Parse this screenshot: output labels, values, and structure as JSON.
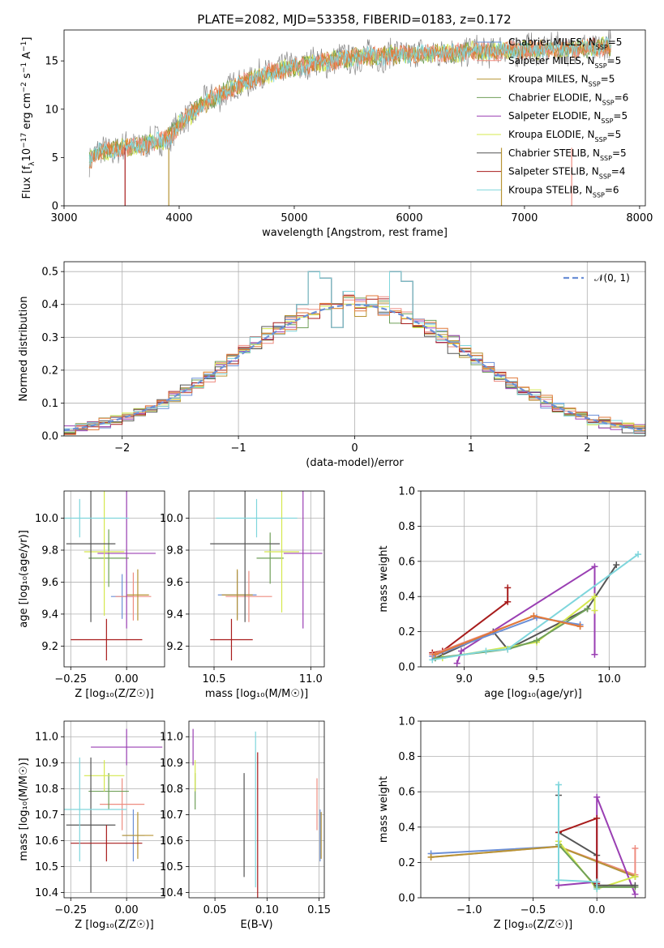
{
  "figure_title": "PLATE=2082, MJD=53358, FIBERID=0183, z=0.172",
  "colors": {
    "Chabrier MILES": "#6b8fd6",
    "Salpeter MILES": "#ee8c80",
    "Kroupa MILES": "#b79434",
    "Chabrier ELODIE": "#6f9f58",
    "Salpeter ELODIE": "#9a3fb3",
    "Kroupa ELODIE": "#d5e84e",
    "Chabrier STELIB": "#555555",
    "Salpeter STELIB": "#a81c1c",
    "Kroupa STELIB": "#7fd6dc",
    "data": "#888888",
    "extra_orange": "#e07a3a"
  },
  "chart_data": [
    {
      "id": "spectrum",
      "type": "line",
      "title": "PLATE=2082, MJD=53358, FIBERID=0183, z=0.172",
      "xlabel": "wavelength [Angstrom, rest frame]",
      "ylabel_parts": [
        "Flux [f",
        "λ",
        "10",
        "−17",
        " erg cm",
        "−2",
        " s",
        "−1",
        " A",
        "−1",
        "]"
      ],
      "xlim": [
        3000,
        8050
      ],
      "ylim": [
        0,
        18.2
      ],
      "xticks": [
        3000,
        4000,
        5000,
        6000,
        7000,
        8000
      ],
      "yticks": [
        0,
        5,
        10,
        15
      ],
      "grid": false,
      "legend_position": "top-right",
      "legend": [
        {
          "name": "Chabrier MILES",
          "nssp": "5"
        },
        {
          "name": "Salpeter MILES",
          "nssp": "5"
        },
        {
          "name": "Kroupa MILES",
          "nssp": "5"
        },
        {
          "name": "Chabrier ELODIE",
          "nssp": "6"
        },
        {
          "name": "Salpeter ELODIE",
          "nssp": "5"
        },
        {
          "name": "Kroupa ELODIE",
          "nssp": "5"
        },
        {
          "name": "Chabrier STELIB",
          "nssp": "5"
        },
        {
          "name": "Salpeter STELIB",
          "nssp": "4"
        },
        {
          "name": "Kroupa STELIB",
          "nssp": "6"
        }
      ],
      "continuum": {
        "x": [
          3220,
          3300,
          3500,
          3700,
          3900,
          4000,
          4200,
          4400,
          4600,
          4800,
          5000,
          5200,
          5500,
          5800,
          6000,
          6300,
          6600,
          6900,
          7200,
          7500,
          7750
        ],
        "y": [
          4.8,
          5.5,
          6.0,
          6.3,
          7.0,
          8.4,
          10.5,
          11.8,
          13.0,
          13.8,
          14.4,
          14.8,
          15.3,
          15.6,
          15.7,
          15.8,
          16.0,
          16.1,
          16.2,
          16.3,
          16.5
        ]
      },
      "model_cutoffs": [
        {
          "model": "Salpeter STELIB",
          "x": 3530
        },
        {
          "model": "Kroupa MILES",
          "x": 3910
        },
        {
          "model": "Kroupa MILES",
          "x": 6800
        },
        {
          "model": "Salpeter MILES",
          "x": 7410
        }
      ]
    },
    {
      "id": "residuals",
      "type": "histogram",
      "xlabel": "(data-model)/error",
      "ylabel": "Normed distribution",
      "xlim": [
        -2.5,
        2.5
      ],
      "ylim": [
        0,
        0.53
      ],
      "xticks": [
        -2,
        -1,
        0,
        1,
        2
      ],
      "yticks": [
        0.0,
        0.1,
        0.2,
        0.3,
        0.4,
        0.5
      ],
      "grid": true,
      "legend_position": "top-right",
      "reference_curve": "𝒩(0, 1)",
      "bin_width": 0.1,
      "peaks": [
        {
          "x": -0.3,
          "y": 0.5
        },
        {
          "x": -0.25,
          "y": 0.48
        },
        {
          "x": 0.35,
          "y": 0.5
        },
        {
          "x": -0.45,
          "y": 0.4
        },
        {
          "x": 0.45,
          "y": 0.47
        },
        {
          "x": -0.15,
          "y": 0.33
        },
        {
          "x": 0.2,
          "y": 0.4
        },
        {
          "x": -0.05,
          "y": 0.44
        }
      ]
    },
    {
      "id": "age-vs-Z",
      "type": "errorbar",
      "xlabel": "Z [log₁₀(Z/Z☉)]",
      "ylabel": "age  [log₁₀(age/yr)]",
      "xlim": [
        -0.28,
        0.17
      ],
      "ylim": [
        9.07,
        10.17
      ],
      "xticks": [
        -0.25,
        0.0
      ],
      "yticks": [
        9.2,
        9.4,
        9.6,
        9.8,
        10.0
      ],
      "grid": true,
      "points": [
        {
          "model": "Chabrier MILES",
          "x": -0.02,
          "xerr": 0.05,
          "y": 9.51,
          "yerr": 0.14
        },
        {
          "model": "Salpeter MILES",
          "x": 0.03,
          "xerr": 0.08,
          "y": 9.51,
          "yerr": 0.15
        },
        {
          "model": "Kroupa MILES",
          "x": 0.05,
          "xerr": 0.05,
          "y": 9.52,
          "yerr": 0.16
        },
        {
          "model": "Chabrier ELODIE",
          "x": -0.08,
          "xerr": 0.09,
          "y": 9.75,
          "yerr": 0.18
        },
        {
          "model": "Salpeter ELODIE",
          "x": 0.0,
          "xerr": 0.13,
          "y": 9.78,
          "yerr": 0.47
        },
        {
          "model": "Kroupa ELODIE",
          "x": -0.1,
          "xerr": 0.09,
          "y": 9.79,
          "yerr": 0.4
        },
        {
          "model": "Chabrier STELIB",
          "x": -0.16,
          "xerr": 0.11,
          "y": 9.84,
          "yerr": 0.49
        },
        {
          "model": "Salpeter STELIB",
          "x": -0.09,
          "xerr": 0.16,
          "y": 9.24,
          "yerr": 0.13
        },
        {
          "model": "Kroupa STELIB",
          "x": -0.21,
          "xerr": 0.22,
          "y": 10.0,
          "yerr": 0.12
        }
      ]
    },
    {
      "id": "age-vs-mass",
      "type": "errorbar",
      "xlabel": "mass [log₁₀(M/M☉)]",
      "ylabel": "",
      "xlim": [
        10.37,
        11.07
      ],
      "ylim": [
        9.07,
        10.17
      ],
      "xticks": [
        10.5,
        11.0
      ],
      "yticks": [
        9.2,
        9.4,
        9.6,
        9.8,
        10.0
      ],
      "grid": true,
      "points": [
        {
          "model": "Chabrier MILES",
          "x": 10.62,
          "xerr": 0.1,
          "y": 9.52,
          "yerr": 0.15
        },
        {
          "model": "Salpeter MILES",
          "x": 10.68,
          "xerr": 0.12,
          "y": 9.51,
          "yerr": 0.16
        },
        {
          "model": "Kroupa MILES",
          "x": 10.62,
          "xerr": 0.08,
          "y": 9.52,
          "yerr": 0.16
        },
        {
          "model": "Chabrier ELODIE",
          "x": 10.79,
          "xerr": 0.07,
          "y": 9.75,
          "yerr": 0.16
        },
        {
          "model": "Salpeter ELODIE",
          "x": 10.96,
          "xerr": 0.1,
          "y": 9.78,
          "yerr": 0.47
        },
        {
          "model": "Kroupa ELODIE",
          "x": 10.85,
          "xerr": 0.09,
          "y": 9.79,
          "yerr": 0.38
        },
        {
          "model": "Chabrier STELIB",
          "x": 10.66,
          "xerr": 0.18,
          "y": 9.84,
          "yerr": 0.49
        },
        {
          "model": "Salpeter STELIB",
          "x": 10.59,
          "xerr": 0.11,
          "y": 9.24,
          "yerr": 0.13
        },
        {
          "model": "Kroupa STELIB",
          "x": 10.72,
          "xerr": 0.21,
          "y": 10.0,
          "yerr": 0.12
        }
      ]
    },
    {
      "id": "weight-vs-age",
      "type": "line",
      "xlabel": "age  [log₁₀(age/yr)]",
      "ylabel": "mass weight",
      "xlim": [
        8.7,
        10.25
      ],
      "ylim": [
        0,
        1.0
      ],
      "xticks": [
        9.0,
        9.5,
        10.0
      ],
      "yticks": [
        0.0,
        0.2,
        0.4,
        0.6,
        0.8,
        1.0
      ],
      "grid": true,
      "series": [
        {
          "model": "Salpeter STELIB",
          "x": [
            8.78,
            8.85,
            9.3,
            9.3
          ],
          "y": [
            0.08,
            0.09,
            0.37,
            0.45
          ]
        },
        {
          "model": "Chabrier STELIB",
          "x": [
            8.8,
            9.2,
            9.3,
            9.85,
            10.05
          ],
          "y": [
            0.05,
            0.2,
            0.1,
            0.33,
            0.58
          ]
        },
        {
          "model": "Salpeter ELODIE",
          "x": [
            8.95,
            8.98,
            9.9,
            9.9
          ],
          "y": [
            0.02,
            0.09,
            0.57,
            0.07
          ]
        },
        {
          "model": "Kroupa ELODIE",
          "x": [
            8.85,
            9.5,
            9.9,
            9.9
          ],
          "y": [
            0.05,
            0.14,
            0.4,
            0.32
          ]
        },
        {
          "model": "Chabrier ELODIE",
          "x": [
            8.8,
            9.3,
            9.5,
            9.85
          ],
          "y": [
            0.05,
            0.1,
            0.15,
            0.33
          ]
        },
        {
          "model": "Kroupa STELIB",
          "x": [
            8.78,
            9.15,
            9.3,
            10.2
          ],
          "y": [
            0.04,
            0.09,
            0.1,
            0.64
          ]
        },
        {
          "model": "Chabrier MILES",
          "x": [
            8.78,
            9.5,
            9.8
          ],
          "y": [
            0.06,
            0.28,
            0.24
          ]
        },
        {
          "model": "Salpeter MILES",
          "x": [
            8.78,
            9.48,
            9.8
          ],
          "y": [
            0.07,
            0.29,
            0.23
          ]
        },
        {
          "model": "extra",
          "x": [
            8.8,
            9.48,
            9.8
          ],
          "y": [
            0.07,
            0.29,
            0.23
          ]
        }
      ]
    },
    {
      "id": "mass-vs-Z",
      "type": "errorbar",
      "xlabel": "Z [log₁₀(Z/Z☉)]",
      "ylabel": "mass [log₁₀(M/M☉)]",
      "xlim": [
        -0.28,
        0.17
      ],
      "ylim": [
        10.38,
        11.06
      ],
      "xticks": [
        -0.25,
        0.0
      ],
      "yticks": [
        10.4,
        10.5,
        10.6,
        10.7,
        10.8,
        10.9,
        11.0
      ],
      "grid": true,
      "points": [
        {
          "model": "Chabrier MILES",
          "x": 0.03,
          "xerr": 0.05,
          "y": 10.62,
          "yerr": 0.1
        },
        {
          "model": "Salpeter MILES",
          "x": -0.02,
          "xerr": 0.1,
          "y": 10.74,
          "yerr": 0.1
        },
        {
          "model": "Kroupa MILES",
          "x": 0.05,
          "xerr": 0.07,
          "y": 10.62,
          "yerr": 0.09
        },
        {
          "model": "Chabrier ELODIE",
          "x": -0.08,
          "xerr": 0.09,
          "y": 10.79,
          "yerr": 0.07
        },
        {
          "model": "Salpeter ELODIE",
          "x": 0.0,
          "xerr": 0.16,
          "y": 10.96,
          "yerr": 0.07
        },
        {
          "model": "Kroupa ELODIE",
          "x": -0.1,
          "xerr": 0.09,
          "y": 10.85,
          "yerr": 0.06
        },
        {
          "model": "Chabrier STELIB",
          "x": -0.16,
          "xerr": 0.11,
          "y": 10.66,
          "yerr": 0.26
        },
        {
          "model": "Salpeter STELIB",
          "x": -0.09,
          "xerr": 0.16,
          "y": 10.59,
          "yerr": 0.07
        },
        {
          "model": "Kroupa STELIB",
          "x": -0.21,
          "xerr": 0.21,
          "y": 10.72,
          "yerr": 0.2
        }
      ]
    },
    {
      "id": "mass-vs-ebv",
      "type": "errorbar",
      "xlabel": "E(B-V)",
      "ylabel": "",
      "xlim": [
        0.025,
        0.155
      ],
      "ylim": [
        10.38,
        11.06
      ],
      "xticks": [
        0.05,
        0.1,
        0.15
      ],
      "yticks": [
        10.4,
        10.5,
        10.6,
        10.7,
        10.8,
        10.9,
        11.0
      ],
      "grid": true,
      "points": [
        {
          "model": "Chabrier MILES",
          "x": 0.151,
          "y": 10.62,
          "yerr": 0.1
        },
        {
          "model": "Salpeter MILES",
          "x": 0.148,
          "y": 10.74,
          "yerr": 0.1
        },
        {
          "model": "Kroupa MILES",
          "x": 0.152,
          "y": 10.62,
          "yerr": 0.09
        },
        {
          "model": "Chabrier ELODIE",
          "x": 0.031,
          "y": 10.79,
          "yerr": 0.07
        },
        {
          "model": "Salpeter ELODIE",
          "x": 0.029,
          "y": 10.96,
          "yerr": 0.07
        },
        {
          "model": "Kroupa ELODIE",
          "x": 0.031,
          "y": 10.85,
          "yerr": 0.06
        },
        {
          "model": "Chabrier STELIB",
          "x": 0.078,
          "y": 10.66,
          "yerr": 0.2
        },
        {
          "model": "Salpeter STELIB",
          "x": 0.091,
          "y": 10.59,
          "yerr": 0.35
        },
        {
          "model": "Kroupa STELIB",
          "x": 0.089,
          "y": 10.72,
          "yerr": 0.3
        }
      ]
    },
    {
      "id": "weight-vs-Z",
      "type": "line",
      "xlabel": "Z [log₁₀(Z/Z☉)]",
      "ylabel": "mass weight",
      "xlim": [
        -1.38,
        0.38
      ],
      "ylim": [
        0,
        1.0
      ],
      "xticks": [
        -1.0,
        -0.5,
        0.0
      ],
      "yticks": [
        0.0,
        0.2,
        0.4,
        0.6,
        0.8,
        1.0
      ],
      "grid": true,
      "series": [
        {
          "model": "Chabrier MILES",
          "x": [
            -1.3,
            -0.3,
            0.3
          ],
          "y": [
            0.25,
            0.29,
            0.12
          ]
        },
        {
          "model": "Salpeter MILES",
          "x": [
            -1.3,
            -0.3,
            0.3,
            0.3
          ],
          "y": [
            0.23,
            0.29,
            0.13,
            0.28
          ]
        },
        {
          "model": "Kroupa MILES",
          "x": [
            -1.3,
            -0.3,
            0.3
          ],
          "y": [
            0.23,
            0.29,
            0.12
          ]
        },
        {
          "model": "Salpeter ELODIE",
          "x": [
            -0.3,
            0.0,
            0.0,
            0.3
          ],
          "y": [
            0.07,
            0.09,
            0.57,
            0.02
          ]
        },
        {
          "model": "Kroupa ELODIE",
          "x": [
            -0.3,
            0.0,
            0.3
          ],
          "y": [
            0.32,
            0.05,
            0.12
          ]
        },
        {
          "model": "Chabrier ELODIE",
          "x": [
            -0.3,
            0.0,
            0.3
          ],
          "y": [
            0.3,
            0.06,
            0.06
          ]
        },
        {
          "model": "Chabrier STELIB",
          "x": [
            -0.3,
            -0.3,
            0.0,
            0.0,
            0.3
          ],
          "y": [
            0.58,
            0.37,
            0.24,
            0.07,
            0.07
          ]
        },
        {
          "model": "Salpeter STELIB",
          "x": [
            -0.3,
            0.0,
            0.0
          ],
          "y": [
            0.37,
            0.45,
            0.08
          ]
        },
        {
          "model": "Kroupa STELIB",
          "x": [
            -0.3,
            -0.3,
            0.0,
            0.0
          ],
          "y": [
            0.64,
            0.1,
            0.09,
            0.05
          ]
        }
      ]
    }
  ]
}
